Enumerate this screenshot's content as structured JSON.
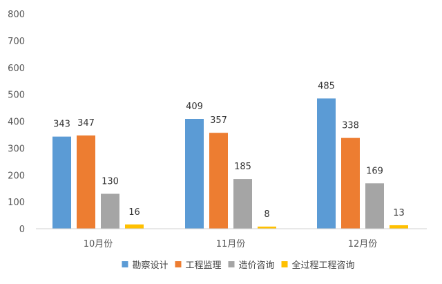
{
  "chart_data": {
    "type": "bar",
    "categories": [
      "10月份",
      "11月份",
      "12月份"
    ],
    "series": [
      {
        "name": "勘察设计",
        "values": [
          343,
          409,
          485
        ],
        "color": "#5B9BD5"
      },
      {
        "name": "工程监理",
        "values": [
          347,
          357,
          338
        ],
        "color": "#ED7D31"
      },
      {
        "name": "造价咨询",
        "values": [
          130,
          185,
          169
        ],
        "color": "#A5A5A5"
      },
      {
        "name": "全过程工程咨询",
        "values": [
          16,
          8,
          13
        ],
        "color": "#FFC000"
      }
    ],
    "ylim": [
      0,
      800
    ],
    "yticks": [
      0,
      100,
      200,
      300,
      400,
      500,
      600,
      700,
      800
    ],
    "title": "",
    "xlabel": "",
    "ylabel": "",
    "grid": false,
    "legend_position": "bottom",
    "axis_color": "#d0d0d0"
  }
}
